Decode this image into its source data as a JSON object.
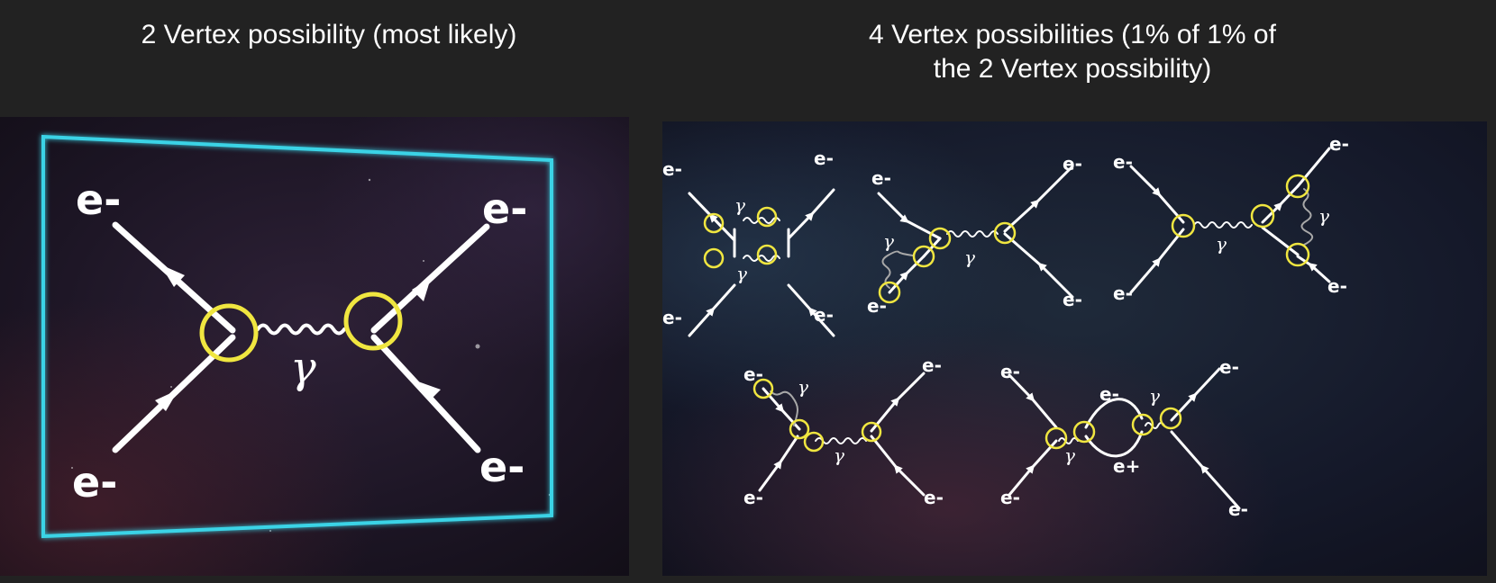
{
  "captions": {
    "left": "2 Vertex possibility (most likely)",
    "right_line1": "4 Vertex possibilities (1% of 1% of",
    "right_line2": "the 2 Vertex possibility)"
  },
  "labels": {
    "electron": "e-",
    "positron": "e+",
    "photon": "γ"
  },
  "colors": {
    "page_background": "#222222",
    "frame": "#3ad3e6",
    "vertex": "#f0e640",
    "line": "#ffffff",
    "photon_secondary": "#a8a8a8"
  }
}
